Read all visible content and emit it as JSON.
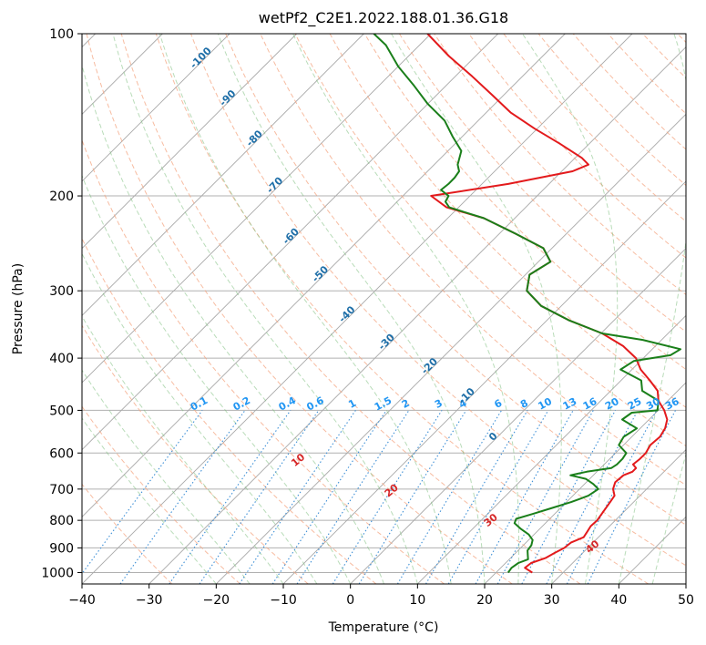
{
  "title": "wetPf2_C2E1.2022.188.01.36.G18",
  "chart_data": {
    "type": "skew-t log-p",
    "title": "wetPf2_C2E1.2022.188.01.36.G18",
    "xlabel": "Temperature (°C)",
    "ylabel": "Pressure (hPa)",
    "xlim": [
      -40,
      50
    ],
    "ylim": [
      1050,
      100
    ],
    "y_scale": "log",
    "x_ticks": [
      -40,
      -30,
      -20,
      -10,
      0,
      10,
      20,
      30,
      40,
      50
    ],
    "x_tick_labels": [
      "−40",
      "−30",
      "−20",
      "−10",
      "0",
      "10",
      "20",
      "30",
      "40",
      "50"
    ],
    "y_ticks": [
      1000,
      900,
      800,
      700,
      600,
      500,
      400,
      300,
      200,
      100
    ],
    "y_tick_labels": [
      "1000",
      "900",
      "800",
      "700",
      "600",
      "500",
      "400",
      "300",
      "200",
      "100"
    ],
    "grid": true,
    "isotherm_labels": [
      "-100",
      "-90",
      "-80",
      "-70",
      "-60",
      "-50",
      "-40",
      "-30",
      "-20",
      "-10",
      "0"
    ],
    "mixing_ratio_labels": [
      "0.1",
      "0.2",
      "0.4",
      "0.6",
      "1",
      "1.5",
      "2",
      "3",
      "4",
      "6",
      "8",
      "10",
      "13",
      "16",
      "20",
      "25",
      "30",
      "36"
    ],
    "dry_adiabat_labels": [
      "10",
      "20",
      "30",
      "40"
    ],
    "series": [
      {
        "color": "#e31a1c",
        "points": [
          [
            1000,
            25.4
          ],
          [
            980,
            23.6
          ],
          [
            960,
            23.8
          ],
          [
            940,
            25.2
          ],
          [
            920,
            25.8
          ],
          [
            900,
            26.5
          ],
          [
            880,
            26.7
          ],
          [
            860,
            27.8
          ],
          [
            840,
            27.5
          ],
          [
            820,
            27.2
          ],
          [
            800,
            27.3
          ],
          [
            770,
            26.9
          ],
          [
            740,
            26.5
          ],
          [
            720,
            26.2
          ],
          [
            700,
            25.0
          ],
          [
            680,
            24.3
          ],
          [
            660,
            24.5
          ],
          [
            650,
            25.3
          ],
          [
            640,
            25.3
          ],
          [
            630,
            24.3
          ],
          [
            615,
            24.5
          ],
          [
            600,
            24.5
          ],
          [
            580,
            24.0
          ],
          [
            560,
            24.2
          ],
          [
            540,
            23.7
          ],
          [
            520,
            22.7
          ],
          [
            500,
            20.9
          ],
          [
            480,
            18.6
          ],
          [
            460,
            17.0
          ],
          [
            440,
            14.3
          ],
          [
            420,
            11.3
          ],
          [
            400,
            8.9
          ],
          [
            380,
            5.2
          ],
          [
            360,
            0.2
          ],
          [
            340,
            -6.8
          ],
          [
            320,
            -13.0
          ],
          [
            300,
            -17.4
          ],
          [
            280,
            -19.4
          ],
          [
            265,
            -18.2
          ],
          [
            250,
            -21.3
          ],
          [
            235,
            -27.6
          ],
          [
            220,
            -34.6
          ],
          [
            210,
            -41.8
          ],
          [
            200,
            -45.8
          ],
          [
            190,
            -36.1
          ],
          [
            180,
            -28.4
          ],
          [
            175,
            -27.0
          ],
          [
            170,
            -29.0
          ],
          [
            160,
            -34.4
          ],
          [
            150,
            -40.4
          ],
          [
            140,
            -46.4
          ],
          [
            130,
            -51.7
          ],
          [
            120,
            -57.5
          ],
          [
            110,
            -64.0
          ],
          [
            100,
            -70.5
          ]
        ]
      },
      {
        "color": "#1a7f1a",
        "points": [
          [
            1000,
            21.8
          ],
          [
            980,
            21.6
          ],
          [
            960,
            21.9
          ],
          [
            945,
            22.8
          ],
          [
            930,
            22.2
          ],
          [
            910,
            21.4
          ],
          [
            890,
            21.2
          ],
          [
            870,
            20.6
          ],
          [
            850,
            19.2
          ],
          [
            830,
            17.2
          ],
          [
            810,
            15.4
          ],
          [
            795,
            15.0
          ],
          [
            780,
            16.6
          ],
          [
            760,
            18.6
          ],
          [
            740,
            20.7
          ],
          [
            720,
            22.3
          ],
          [
            700,
            22.8
          ],
          [
            685,
            21.3
          ],
          [
            670,
            19.4
          ],
          [
            660,
            16.6
          ],
          [
            650,
            18.5
          ],
          [
            640,
            21.6
          ],
          [
            630,
            21.9
          ],
          [
            615,
            21.9
          ],
          [
            600,
            21.6
          ],
          [
            580,
            19.3
          ],
          [
            560,
            18.8
          ],
          [
            540,
            19.5
          ],
          [
            520,
            16.0
          ],
          [
            505,
            16.4
          ],
          [
            500,
            19.9
          ],
          [
            480,
            18.6
          ],
          [
            460,
            14.7
          ],
          [
            440,
            13.0
          ],
          [
            420,
            8.3
          ],
          [
            405,
            9.0
          ],
          [
            395,
            13.6
          ],
          [
            385,
            14.2
          ],
          [
            370,
            7.2
          ],
          [
            360,
            0.2
          ],
          [
            340,
            -6.8
          ],
          [
            320,
            -13.0
          ],
          [
            300,
            -17.4
          ],
          [
            280,
            -19.4
          ],
          [
            265,
            -18.2
          ],
          [
            250,
            -21.3
          ],
          [
            235,
            -27.6
          ],
          [
            220,
            -34.6
          ],
          [
            210,
            -41.4
          ],
          [
            205,
            -42.8
          ],
          [
            200,
            -43.2
          ],
          [
            195,
            -45.2
          ],
          [
            190,
            -45.0
          ],
          [
            185,
            -45.0
          ],
          [
            180,
            -45.3
          ],
          [
            175,
            -46.5
          ],
          [
            165,
            -48.0
          ],
          [
            155,
            -51.5
          ],
          [
            145,
            -55.0
          ],
          [
            135,
            -60.0
          ],
          [
            125,
            -64.7
          ],
          [
            115,
            -70.0
          ],
          [
            105,
            -75.0
          ],
          [
            100,
            -78.5
          ]
        ]
      }
    ]
  }
}
